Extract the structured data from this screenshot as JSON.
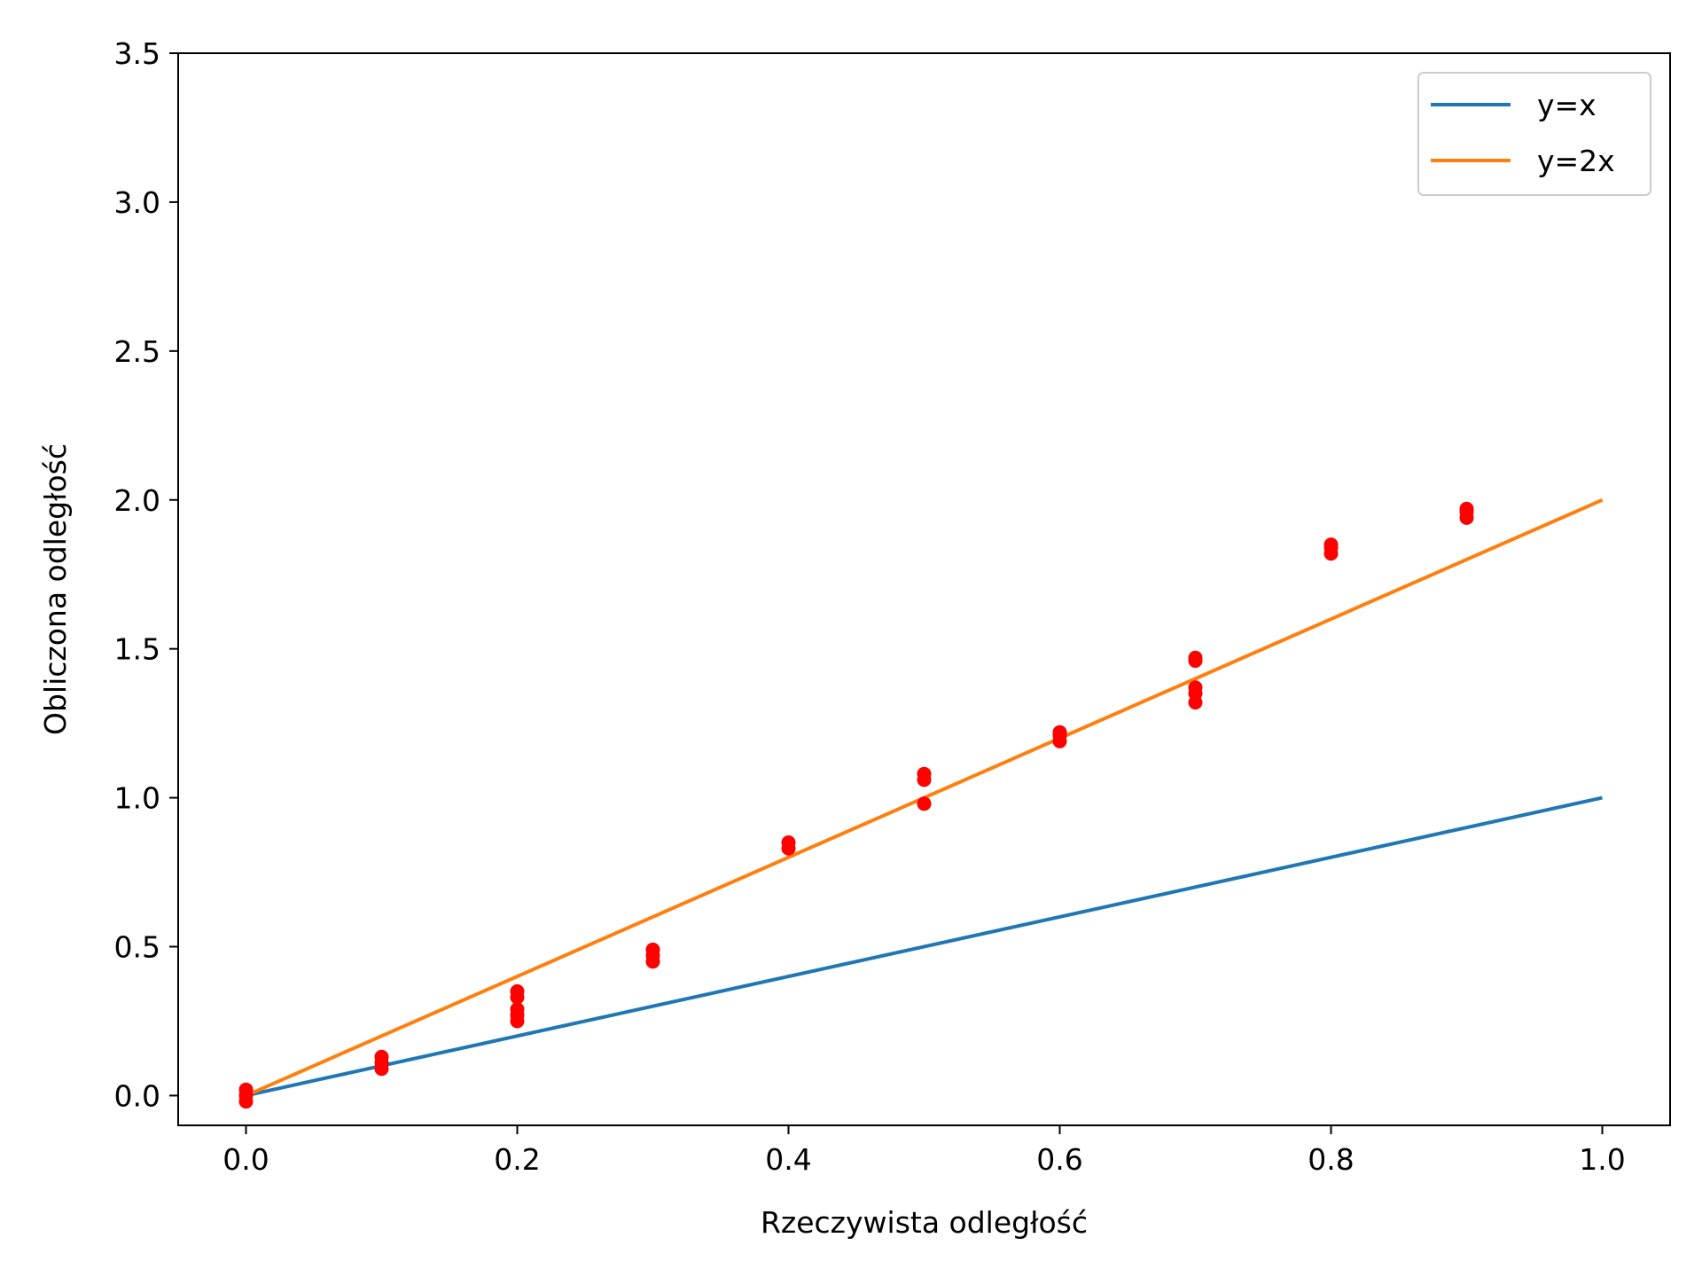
{
  "chart_data": {
    "type": "scatter",
    "xlabel": "Rzeczywista odległość",
    "ylabel": "Obliczona odległość",
    "xlim": [
      -0.05,
      1.05
    ],
    "ylim": [
      -0.1,
      3.5
    ],
    "x_ticks": [
      {
        "value": 0.0,
        "label": "0.0"
      },
      {
        "value": 0.2,
        "label": "0.2"
      },
      {
        "value": 0.4,
        "label": "0.4"
      },
      {
        "value": 0.6,
        "label": "0.6"
      },
      {
        "value": 0.8,
        "label": "0.8"
      },
      {
        "value": 1.0,
        "label": "1.0"
      }
    ],
    "y_ticks": [
      {
        "value": 0.0,
        "label": "0.0"
      },
      {
        "value": 0.5,
        "label": "0.5"
      },
      {
        "value": 1.0,
        "label": "1.0"
      },
      {
        "value": 1.5,
        "label": "1.5"
      },
      {
        "value": 2.0,
        "label": "2.0"
      },
      {
        "value": 2.5,
        "label": "2.5"
      },
      {
        "value": 3.0,
        "label": "3.0"
      },
      {
        "value": 3.5,
        "label": "3.5"
      }
    ],
    "grid": false,
    "legend": "top-right",
    "lines": [
      {
        "name": "y=x",
        "color": "#1f77b4",
        "x": [
          0.0,
          1.0
        ],
        "y": [
          0.0,
          1.0
        ]
      },
      {
        "name": "y=2x",
        "color": "#ff7f0e",
        "x": [
          0.0,
          1.0
        ],
        "y": [
          0.0,
          2.0
        ]
      }
    ],
    "scatter": {
      "color": "#ff0000",
      "points": [
        [
          0.0,
          -0.02
        ],
        [
          0.0,
          0.0
        ],
        [
          0.0,
          0.02
        ],
        [
          0.1,
          0.09
        ],
        [
          0.1,
          0.11
        ],
        [
          0.1,
          0.13
        ],
        [
          0.2,
          0.25
        ],
        [
          0.2,
          0.27
        ],
        [
          0.2,
          0.29
        ],
        [
          0.2,
          0.33
        ],
        [
          0.2,
          0.35
        ],
        [
          0.3,
          0.45
        ],
        [
          0.3,
          0.47
        ],
        [
          0.3,
          0.49
        ],
        [
          0.4,
          0.83
        ],
        [
          0.4,
          0.85
        ],
        [
          0.5,
          0.98
        ],
        [
          0.5,
          1.06
        ],
        [
          0.5,
          1.08
        ],
        [
          0.6,
          1.19
        ],
        [
          0.6,
          1.21
        ],
        [
          0.6,
          1.22
        ],
        [
          0.7,
          1.32
        ],
        [
          0.7,
          1.35
        ],
        [
          0.7,
          1.37
        ],
        [
          0.7,
          1.46
        ],
        [
          0.7,
          1.47
        ],
        [
          0.8,
          1.82
        ],
        [
          0.8,
          1.84
        ],
        [
          0.8,
          1.85
        ],
        [
          0.9,
          1.94
        ],
        [
          0.9,
          1.96
        ],
        [
          0.9,
          1.97
        ]
      ]
    }
  }
}
